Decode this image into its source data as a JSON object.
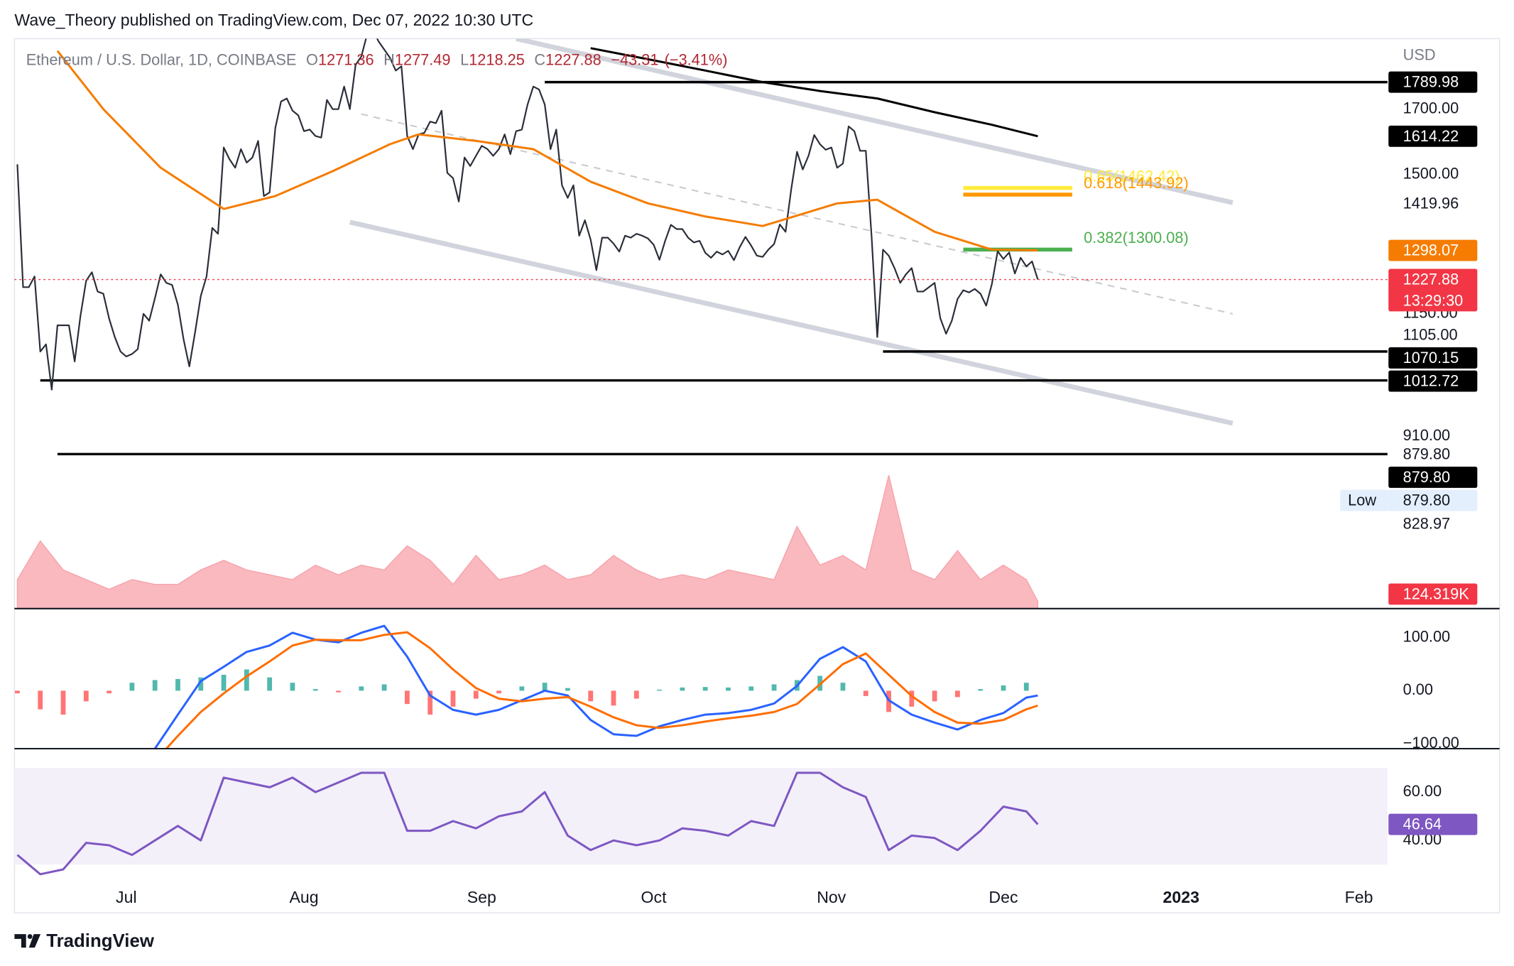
{
  "header": {
    "publisher": "Wave_Theory published on TradingView.com, Dec 07, 2022 10:30 UTC",
    "brand": "TradingView"
  },
  "chart_data": [
    {
      "type": "line",
      "title": "Ethereum / U.S. Dollar, 1D, COINBASE",
      "currency": "USD",
      "ohlc": [
        {
          "label": "O",
          "value": 1271.36
        },
        {
          "label": "H",
          "value": 1277.49
        },
        {
          "label": "L",
          "value": 1218.25
        },
        {
          "label": "C",
          "value": 1227.88
        }
      ],
      "change": {
        "value": -43.31,
        "label": "−43.31"
      },
      "change_pct": {
        "value": -3.41,
        "label": "(−3.41%)"
      },
      "log_scale": true,
      "grid": false,
      "xlim": [
        -0.5,
        239
      ],
      "xticks": [
        {
          "value": 19,
          "label": "Jul"
        },
        {
          "value": 50,
          "label": "Aug"
        },
        {
          "value": 81,
          "label": "Sep"
        },
        {
          "value": 111,
          "label": "Oct"
        },
        {
          "value": 142,
          "label": "Nov"
        },
        {
          "value": 172,
          "label": "Dec"
        },
        {
          "value": 203,
          "label": "2023"
        },
        {
          "value": 234,
          "label": "Feb"
        }
      ],
      "ylim": [
        655,
        1945
      ],
      "yticks": [
        {
          "value": 1700,
          "label": "1700.00"
        },
        {
          "value": 1500,
          "label": "1500.00"
        },
        {
          "value": 1150,
          "label": "1150.00"
        },
        {
          "value": 910,
          "label": "910.00"
        }
      ],
      "series": [
        {
          "color": "#2a2e39",
          "values": [
            1530,
            1210,
            1210,
            1235,
            1070,
            1085,
            995,
            1125,
            1125,
            1125,
            1050,
            1145,
            1225,
            1245,
            1200,
            1195,
            1140,
            1100,
            1070,
            1060,
            1065,
            1075,
            1150,
            1135,
            1185,
            1240,
            1220,
            1215,
            1170,
            1095,
            1040,
            1110,
            1190,
            1235,
            1355,
            1340,
            1580,
            1545,
            1520,
            1575,
            1535,
            1550,
            1600,
            1440,
            1450,
            1640,
            1725,
            1735,
            1695,
            1680,
            1630,
            1635,
            1615,
            1610,
            1730,
            1700,
            1700,
            1775,
            1700,
            1850,
            1880,
            1960,
            1980,
            1935,
            1905,
            1875,
            1830,
            1845,
            1615,
            1575,
            1620,
            1625,
            1660,
            1655,
            1695,
            1505,
            1490,
            1425,
            1550,
            1525,
            1555,
            1585,
            1575,
            1555,
            1575,
            1620,
            1560,
            1630,
            1635,
            1715,
            1775,
            1765,
            1715,
            1575,
            1635,
            1470,
            1435,
            1470,
            1335,
            1375,
            1325,
            1250,
            1330,
            1330,
            1315,
            1295,
            1335,
            1330,
            1340,
            1335,
            1328,
            1312,
            1275,
            1322,
            1363,
            1352,
            1352,
            1330,
            1318,
            1322,
            1292,
            1280,
            1295,
            1288,
            1297,
            1274,
            1306,
            1332,
            1310,
            1285,
            1282,
            1300,
            1314,
            1364,
            1345,
            1460,
            1567,
            1515,
            1555,
            1618,
            1590,
            1573,
            1580,
            1520,
            1532,
            1645,
            1630,
            1570,
            1570,
            1335,
            1100,
            1300,
            1285,
            1255,
            1220,
            1240,
            1255,
            1200,
            1200,
            1210,
            1220,
            1140,
            1107,
            1135,
            1183,
            1203,
            1198,
            1206,
            1195,
            1168,
            1218,
            1296,
            1277,
            1293,
            1242,
            1280,
            1259,
            1271,
            1227.88
          ]
        },
        {
          "color": "#f57c00",
          "x": [
            7,
            15,
            25,
            36,
            45,
            55,
            65,
            70,
            80,
            90,
            100,
            110,
            120,
            130,
            143,
            150,
            160,
            170,
            178
          ],
          "values": [
            1900,
            1700,
            1520,
            1405,
            1440,
            1510,
            1590,
            1620,
            1600,
            1575,
            1480,
            1420,
            1385,
            1360,
            1420,
            1430,
            1345,
            1300,
            1298.07
          ]
        },
        {
          "color": "#000000",
          "x": [
            100,
            110,
            120,
            130,
            140,
            150,
            160,
            170,
            178
          ],
          "values": [
            1910,
            1870,
            1830,
            1790,
            1760,
            1735,
            1690,
            1650,
            1614.22
          ]
        }
      ],
      "trend_lines": [
        {
          "color": "#d1d4dc",
          "x": [
            87,
            212
          ],
          "values": [
            1945,
            1422
          ]
        },
        {
          "color": "#d1d4dc",
          "x": [
            58,
            212
          ],
          "values": [
            1370,
            933
          ]
        },
        {
          "color": "#c8cad1",
          "dashed": true,
          "x": [
            60,
            212
          ],
          "values": [
            1684,
            1150
          ]
        }
      ],
      "levels": [
        {
          "color": "#000000",
          "x": [
            92,
            239
          ],
          "value": 1789.98
        },
        {
          "color": "#000000",
          "x": [
            151,
            239
          ],
          "value": 1070.15
        },
        {
          "color": "#000000",
          "x": [
            4,
            239
          ],
          "value": 1012.72
        },
        {
          "color": "#000000",
          "x": [
            7,
            239
          ],
          "value": 879.8
        }
      ],
      "fib_levels": [
        {
          "label": "0.65(1462.42)",
          "value": 1462.42,
          "x": [
            165,
            184
          ],
          "color": "#ffeb3b"
        },
        {
          "label": "0.618(1443.92)",
          "value": 1443.92,
          "x": [
            165,
            184
          ],
          "color": "#ff9800"
        },
        {
          "label": "0.382(1300.08)",
          "value": 1300.08,
          "x": [
            165,
            184
          ],
          "color": "#4caf50"
        }
      ],
      "last_price_color": "#f23645",
      "price_labels": [
        {
          "value": 1789.98,
          "bg": "#000000",
          "fg": "#ffffff"
        },
        {
          "value": 1614.22,
          "bg": "#000000",
          "fg": "#ffffff"
        },
        {
          "value": 1419.96
        },
        {
          "value": 1298.07,
          "bg": "#f57c00",
          "fg": "#ffffff"
        },
        {
          "value": 1227.88,
          "bg": "#f23645",
          "fg": "#ffffff",
          "sublabel": "13:29:30"
        },
        {
          "value": 1105,
          "label": "1105.00"
        },
        {
          "value": 1070.15,
          "bg": "#000000",
          "fg": "#ffffff"
        },
        {
          "value": 1012.72,
          "bg": "#000000",
          "fg": "#ffffff"
        },
        {
          "value": 879.8,
          "label": "879.80"
        },
        {
          "value": 879.8,
          "label": "879.80",
          "bg": "#000000",
          "fg": "#ffffff"
        },
        {
          "value": 879.8,
          "label": "879.80",
          "tag": "Low",
          "bg": "#e3effd",
          "fg": "#131722"
        },
        {
          "value": 828.97
        }
      ]
    },
    {
      "type": "area",
      "ylim": [
        0,
        2500
      ],
      "series": [
        {
          "color": "#f7a1a9",
          "x": [
            0,
            4,
            8,
            12,
            16,
            20,
            24,
            28,
            32,
            36,
            40,
            44,
            48,
            52,
            56,
            60,
            64,
            68,
            72,
            76,
            80,
            84,
            88,
            92,
            96,
            100,
            104,
            108,
            112,
            116,
            120,
            124,
            128,
            132,
            136,
            140,
            144,
            148,
            152,
            156,
            160,
            164,
            168,
            172,
            176,
            178
          ],
          "values": [
            500,
            1167,
            667,
            500,
            333,
            500,
            417,
            417,
            667,
            833,
            667,
            583,
            500,
            750,
            583,
            750,
            667,
            1083,
            833,
            417,
            917,
            500,
            583,
            750,
            500,
            583,
            917,
            667,
            500,
            583,
            500,
            667,
            583,
            500,
            1417,
            750,
            917,
            667,
            2300,
            667,
            500,
            1000,
            500,
            750,
            500,
            124.319
          ]
        }
      ],
      "last_label": {
        "value": 124.319,
        "label": "124.319K",
        "bg": "#f23645",
        "fg": "#ffffff"
      }
    },
    {
      "type": "line",
      "ylim": [
        -109,
        154.5
      ],
      "yticks": [
        {
          "value": 100,
          "label": "100.00"
        },
        {
          "value": 0,
          "label": "0.00"
        },
        {
          "value": -100,
          "label": "−100.00"
        }
      ],
      "histogram": {
        "up_color": "#26a69a",
        "down_color": "#ff5252",
        "x": [
          0,
          4,
          8,
          12,
          16,
          20,
          24,
          28,
          32,
          36,
          40,
          44,
          48,
          52,
          56,
          60,
          64,
          68,
          72,
          76,
          80,
          84,
          88,
          92,
          96,
          100,
          104,
          108,
          112,
          116,
          120,
          124,
          128,
          132,
          136,
          140,
          144,
          148,
          152,
          156,
          160,
          164,
          168,
          172,
          176
        ],
        "values": [
          -5,
          -35,
          -45,
          -20,
          -5,
          15,
          20,
          22,
          25,
          30,
          40,
          25,
          15,
          3,
          -3,
          8,
          12,
          -25,
          -45,
          -30,
          -15,
          -5,
          8,
          15,
          5,
          -20,
          -28,
          -15,
          2,
          6,
          7,
          6,
          8,
          12,
          20,
          28,
          15,
          -10,
          -40,
          -30,
          -20,
          -12,
          3,
          10,
          15
        ]
      },
      "series": [
        {
          "color": "#2962ff",
          "x": [
            24,
            28,
            32,
            36,
            40,
            44,
            48,
            52,
            56,
            60,
            64,
            68,
            72,
            76,
            80,
            84,
            88,
            92,
            96,
            100,
            104,
            108,
            112,
            116,
            120,
            124,
            128,
            132,
            136,
            140,
            144,
            148,
            152,
            156,
            160,
            164,
            168,
            172,
            176,
            178
          ],
          "values": [
            -109,
            -45,
            18,
            45,
            73,
            85,
            109,
            96,
            91,
            109,
            122,
            64,
            -9,
            -36,
            -45,
            -36,
            -18,
            0,
            -9,
            -55,
            -82,
            -85,
            -67,
            -55,
            -45,
            -42,
            -36,
            -24,
            9,
            60,
            82,
            55,
            -18,
            -45,
            -60,
            -73,
            -55,
            -42,
            -13,
            -9
          ]
        },
        {
          "color": "#ff6d00",
          "x": [
            26,
            28,
            32,
            36,
            40,
            44,
            48,
            52,
            56,
            60,
            64,
            68,
            72,
            76,
            80,
            84,
            88,
            92,
            96,
            100,
            104,
            108,
            112,
            116,
            120,
            124,
            128,
            132,
            136,
            140,
            144,
            148,
            152,
            156,
            160,
            164,
            168,
            172,
            176,
            178
          ],
          "values": [
            -109,
            -85,
            -40,
            -5,
            27,
            55,
            85,
            96,
            95,
            95,
            105,
            110,
            80,
            40,
            5,
            -15,
            -20,
            -15,
            -12,
            -30,
            -50,
            -65,
            -70,
            -65,
            -58,
            -52,
            -47,
            -40,
            -25,
            12,
            50,
            70,
            30,
            -10,
            -40,
            -60,
            -62,
            -55,
            -35,
            -28
          ]
        }
      ]
    },
    {
      "type": "line",
      "ylim": [
        10,
        78
      ],
      "yticks": [
        {
          "value": 60,
          "label": "60.00"
        },
        {
          "value": 40,
          "label": "40.00"
        }
      ],
      "band": [
        30,
        70
      ],
      "band_color": "#f3f0fa",
      "series": [
        {
          "color": "#7e57c2",
          "x": [
            0,
            4,
            8,
            12,
            16,
            20,
            24,
            28,
            32,
            36,
            40,
            44,
            48,
            52,
            56,
            60,
            64,
            68,
            72,
            76,
            80,
            84,
            88,
            92,
            96,
            100,
            104,
            108,
            112,
            116,
            120,
            124,
            128,
            132,
            136,
            140,
            144,
            148,
            152,
            156,
            160,
            164,
            168,
            172,
            176,
            178
          ],
          "values": [
            34,
            26,
            28,
            39,
            38,
            34,
            40,
            46,
            40,
            66,
            64,
            62,
            66,
            60,
            64,
            68,
            68,
            44,
            44,
            48,
            45,
            50,
            52,
            60,
            42,
            36,
            40,
            38,
            40,
            45,
            44,
            42,
            48,
            46,
            68,
            68,
            62,
            58,
            36,
            42,
            41,
            36,
            44,
            54,
            52,
            46.64
          ]
        }
      ],
      "last_label": {
        "value": 46.64,
        "bg": "#7e57c2",
        "fg": "#ffffff"
      }
    }
  ]
}
